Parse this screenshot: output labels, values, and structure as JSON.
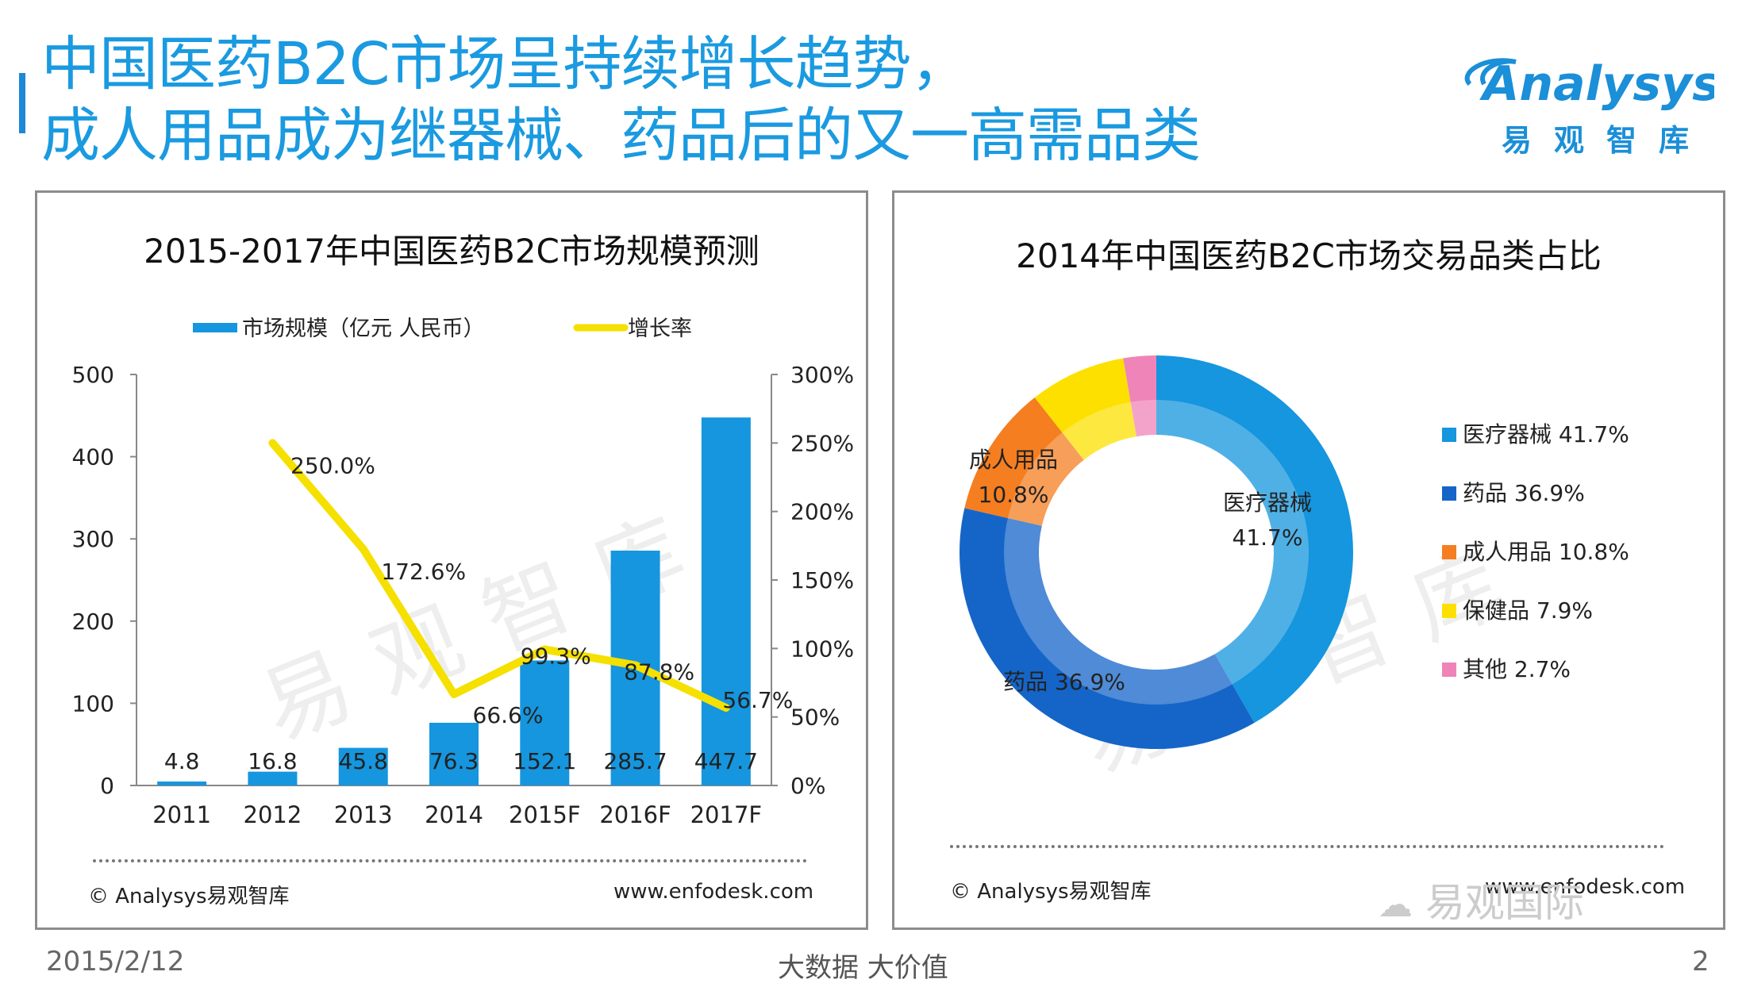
{
  "header": {
    "title_line1": "中国医药B2C市场呈持续增长趋势，",
    "title_line2": "成人用品成为继器械、药品后的又一高需品类"
  },
  "logo": {
    "name": "Analysys",
    "sub": "易观智库"
  },
  "watermark": "易观智库",
  "footer": {
    "date": "2015/2/12",
    "center": "大数据  大价值",
    "page": "2",
    "wechat": "易观国际"
  },
  "left_panel": {
    "copyright": "© Analysys易观智库",
    "url": "www.enfodesk.com"
  },
  "right_panel": {
    "copyright": "© Analysys易观智库",
    "url": "www.enfodesk.com"
  },
  "chart_data": [
    {
      "type": "bar",
      "title": "2015-2017年中国医药B2C市场规模预测",
      "categories": [
        "2011",
        "2012",
        "2013",
        "2014",
        "2015F",
        "2016F",
        "2017F"
      ],
      "series": [
        {
          "name": "市场规模（亿元 人民币）",
          "kind": "bar",
          "axis": "left",
          "values": [
            4.8,
            16.8,
            45.8,
            76.3,
            152.1,
            285.7,
            447.7
          ],
          "labels": [
            "4.8",
            "16.8",
            "45.8",
            "76.3",
            "152.1",
            "285.7",
            "447.7"
          ]
        },
        {
          "name": "增长率",
          "kind": "line",
          "axis": "right",
          "values": [
            null,
            250.0,
            172.6,
            66.6,
            99.3,
            87.8,
            56.7
          ],
          "labels": [
            "",
            "250.0%",
            "172.6%",
            "66.6%",
            "99.3%",
            "87.8%",
            "56.7%"
          ]
        }
      ],
      "ylim_left": [
        0,
        500
      ],
      "yticks_left": [
        "0",
        "100",
        "200",
        "300",
        "400",
        "500"
      ],
      "ylim_right": [
        0,
        300
      ],
      "yticks_right": [
        "0%",
        "50%",
        "100%",
        "150%",
        "200%",
        "250%",
        "300%"
      ],
      "colors": {
        "bar": "#1596de",
        "line": "#f5e000"
      }
    },
    {
      "type": "pie",
      "title": "2014年中国医药B2C市场交易品类占比",
      "slices": [
        {
          "name": "医疗器械",
          "value": 41.7,
          "legend": "医疗器械 41.7%",
          "label_name": "医疗器械",
          "label_value": "41.7%",
          "color": "#1596de"
        },
        {
          "name": "药品",
          "value": 36.9,
          "legend": "药品 36.9%",
          "label_name": "药品 36.9%",
          "label_value": "",
          "color": "#1565c8"
        },
        {
          "name": "成人用品",
          "value": 10.8,
          "legend": "成人用品 10.8%",
          "label_name": "成人用品",
          "label_value": "10.8%",
          "color": "#f57e20"
        },
        {
          "name": "保健品",
          "value": 7.9,
          "legend": "保健品 7.9%",
          "label_name": "",
          "label_value": "",
          "color": "#fde000"
        },
        {
          "name": "其他",
          "value": 2.7,
          "legend": "其他 2.7%",
          "label_name": "",
          "label_value": "",
          "color": "#ef84b8"
        }
      ]
    }
  ]
}
